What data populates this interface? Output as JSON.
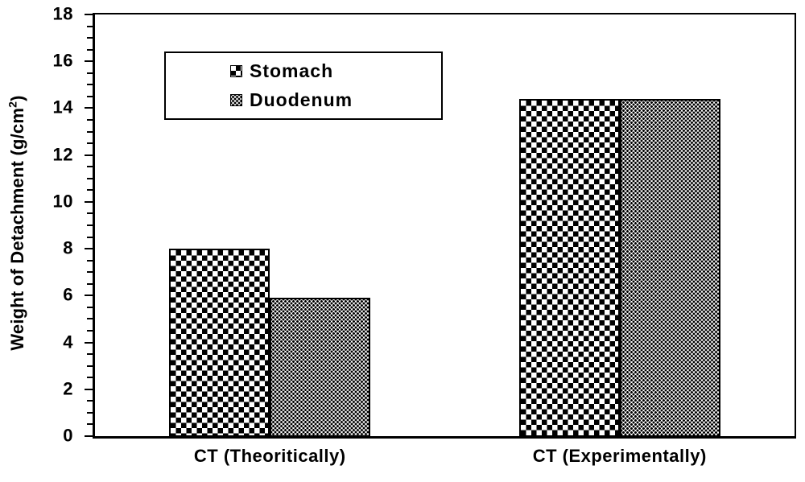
{
  "chart_data": {
    "type": "bar",
    "title": "",
    "categories": [
      "CT (Theoritically)",
      "CT (Experimentally)"
    ],
    "series": [
      {
        "name": "Stomach",
        "pattern": "checkerboard",
        "values": [
          8.0,
          14.4
        ]
      },
      {
        "name": "Duodenum",
        "pattern": "dotted-diamond",
        "values": [
          5.9,
          14.4
        ]
      }
    ],
    "xlabel": "",
    "ylabel": "Weight of Detachment (g/cm²)",
    "ylabel_parts": {
      "main": "Weight of Detachment (g/cm",
      "superscript": "2",
      "close": ")"
    },
    "ylim": [
      0,
      18
    ],
    "y_major_step": 2,
    "y_minor_step": 0.5,
    "y_tick_labels": [
      "0",
      "2",
      "4",
      "6",
      "8",
      "10",
      "12",
      "14",
      "16",
      "18"
    ],
    "grid": false,
    "legend_position": "upper-left-inside",
    "colors": {
      "foreground": "#000000",
      "background": "#ffffff"
    }
  }
}
